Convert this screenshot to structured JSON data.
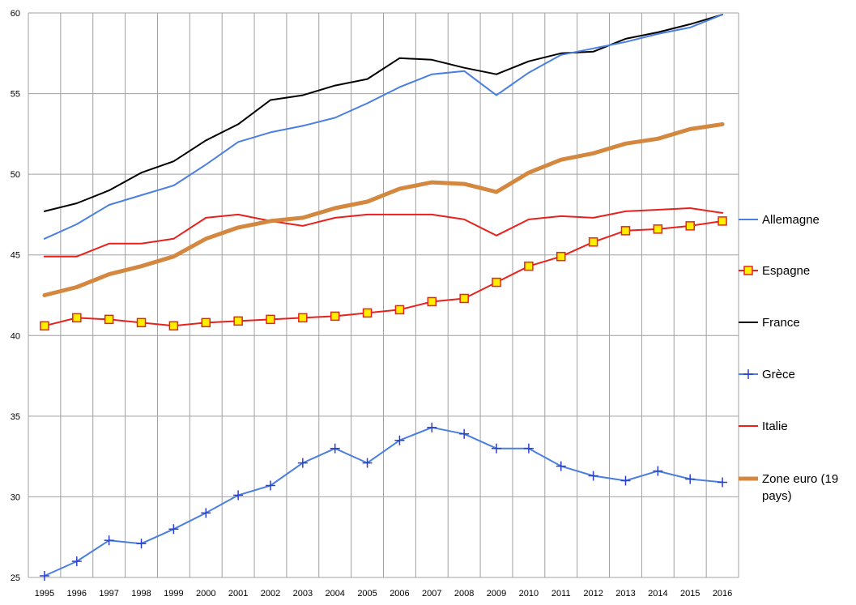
{
  "chart_data": {
    "type": "line",
    "title": "",
    "xlabel": "",
    "ylabel": "",
    "ylim": [
      25,
      60
    ],
    "yticks": [
      "25",
      "30",
      "35",
      "40",
      "45",
      "50",
      "55",
      "60"
    ],
    "x": [
      "1995",
      "1996",
      "1997",
      "1998",
      "1999",
      "2000",
      "2001",
      "2002",
      "2003",
      "2004",
      "2005",
      "2006",
      "2007",
      "2008",
      "2009",
      "2010",
      "2011",
      "2012",
      "2013",
      "2014",
      "2015",
      "2016"
    ],
    "grid": true,
    "legend_position": "right",
    "series": [
      {
        "name": "Allemagne",
        "color": "#4a7ee0",
        "marker": "none",
        "values": [
          46.0,
          46.9,
          48.1,
          48.7,
          49.3,
          50.6,
          52.0,
          52.6,
          53.0,
          53.5,
          54.4,
          55.4,
          56.2,
          56.4,
          54.9,
          56.3,
          57.4,
          57.8,
          58.2,
          58.7,
          59.1,
          59.9
        ]
      },
      {
        "name": "Espagne",
        "color": "#e8211c",
        "marker": "square",
        "values": [
          40.6,
          41.1,
          41.0,
          40.8,
          40.6,
          40.8,
          40.9,
          41.0,
          41.1,
          41.2,
          41.4,
          41.6,
          42.1,
          42.3,
          43.3,
          44.3,
          44.9,
          45.8,
          46.5,
          46.6,
          46.8,
          47.1
        ]
      },
      {
        "name": "France",
        "color": "#000000",
        "marker": "none",
        "values": [
          47.7,
          48.2,
          49.0,
          50.1,
          50.8,
          52.1,
          53.1,
          54.6,
          54.9,
          55.5,
          55.9,
          57.2,
          57.1,
          56.6,
          56.2,
          57.0,
          57.5,
          57.6,
          58.4,
          58.8,
          59.3,
          59.9
        ]
      },
      {
        "name": "Grèce",
        "color": "#4a7ee0",
        "marker": "plus",
        "values": [
          25.1,
          26.0,
          27.3,
          27.1,
          28.0,
          29.0,
          30.1,
          30.7,
          32.1,
          33.0,
          32.1,
          33.5,
          34.3,
          33.9,
          33.0,
          33.0,
          31.9,
          31.3,
          31.0,
          31.6,
          31.1,
          30.9
        ]
      },
      {
        "name": "Italie",
        "color": "#e8211c",
        "marker": "none",
        "values": [
          44.9,
          44.9,
          45.7,
          45.7,
          46.0,
          47.3,
          47.5,
          47.1,
          46.8,
          47.3,
          47.5,
          47.5,
          47.5,
          47.2,
          46.2,
          47.2,
          47.4,
          47.3,
          47.7,
          47.8,
          47.9,
          47.6
        ]
      },
      {
        "name": "Zone euro (19 pays)",
        "color": "#d4873f",
        "marker": "none",
        "values": [
          42.5,
          43.0,
          43.8,
          44.3,
          44.9,
          46.0,
          46.7,
          47.1,
          47.3,
          47.9,
          48.3,
          49.1,
          49.5,
          49.4,
          48.9,
          50.1,
          50.9,
          51.3,
          51.9,
          52.2,
          52.8,
          53.1
        ]
      }
    ],
    "legend_label_lines": [
      [
        "Allemagne"
      ],
      [
        "Espagne"
      ],
      [
        "France"
      ],
      [
        "Grèce"
      ],
      [
        "Italie"
      ],
      [
        "Zone euro (19",
        "pays)"
      ]
    ]
  }
}
